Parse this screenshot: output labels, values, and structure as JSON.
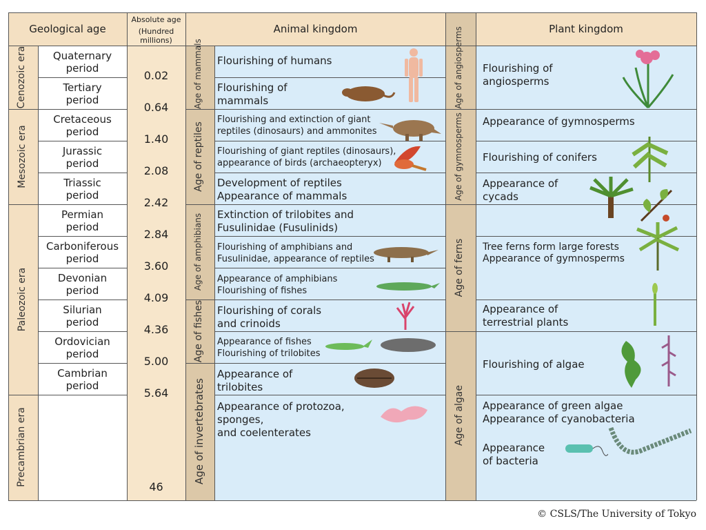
{
  "headers": {
    "geological_age": "Geological age",
    "absolute_age_line1": "Absolute age",
    "absolute_age_line2": "(Hundred millions)",
    "animal_kingdom": "Animal kingdom",
    "plant_kingdom": "Plant kingdom"
  },
  "eras": {
    "cenozoic": "Cenozoic era",
    "mesozoic": "Mesozoic era",
    "paleozoic": "Paleozoic era",
    "precambrian": "Precambrian era"
  },
  "periods": [
    {
      "line1": "Quaternary",
      "line2": "period"
    },
    {
      "line1": "Tertiary",
      "line2": "period"
    },
    {
      "line1": "Cretaceous",
      "line2": "period"
    },
    {
      "line1": "Jurassic",
      "line2": "period"
    },
    {
      "line1": "Triassic",
      "line2": "period"
    },
    {
      "line1": "Permian",
      "line2": "period"
    },
    {
      "line1": "Carboniferous",
      "line2": "period"
    },
    {
      "line1": "Devonian",
      "line2": "period"
    },
    {
      "line1": "Silurian",
      "line2": "period"
    },
    {
      "line1": "Ordovician",
      "line2": "period"
    },
    {
      "line1": "Cambrian",
      "line2": "period"
    }
  ],
  "absolute_ages": [
    "0.02",
    "0.64",
    "1.40",
    "2.08",
    "2.42",
    "2.84",
    "3.60",
    "4.09",
    "4.36",
    "5.00",
    "5.64",
    "46"
  ],
  "animal_ages": {
    "mammals": "Age of mammals",
    "reptiles": "Age of reptiles",
    "amphibians": "Age of amphibians",
    "fishes": "Age of fishes",
    "invertebrates": "Age of invertebrates"
  },
  "animal_events": [
    "Flourishing of humans",
    "Flourishing of\nmammals",
    "Flourishing and extinction of giant\nreptiles (dinosaurs) and ammonites",
    "Flourishing of giant reptiles (dinosaurs),\nappearance of birds (archaeopteryx)",
    "Development of reptiles\nAppearance of mammals",
    "Extinction of trilobites and\nFusulinidae (Fusulinids)",
    "Flourishing of amphibians and\nFusulinidae, appearance of reptiles",
    "Appearance of amphibians\nFlourishing of fishes",
    "Flourishing of corals\nand crinoids",
    "Appearance of fishes\nFlourishing of trilobites",
    "Appearance of\ntrilobites",
    "Appearance of protozoa,\nsponges,\nand coelenterates"
  ],
  "plant_ages": {
    "angiosperms": "Age of angiosperms",
    "gymnosperms": "Age of gymnosperms",
    "ferns": "Age of ferns",
    "algae": "Age of algae"
  },
  "plant_events": [
    "Flourishing of\nangiosperms",
    "Appearance of gymnosperms",
    "Flourishing of conifers",
    "Appearance of\ncycads",
    "Tree ferns form large forests\nAppearance of gymnosperms",
    "Appearance of\nterrestrial plants",
    "Flourishing of algae",
    "Appearance of green algae\nAppearance of cyanobacteria",
    "Appearance\nof bacteria"
  ],
  "copyright": "© CSLS/The University of Tokyo",
  "colors": {
    "header": "#f4e0c2",
    "age_band": "#dcc8a8",
    "kingdom_bg": "#d9ecf9"
  }
}
